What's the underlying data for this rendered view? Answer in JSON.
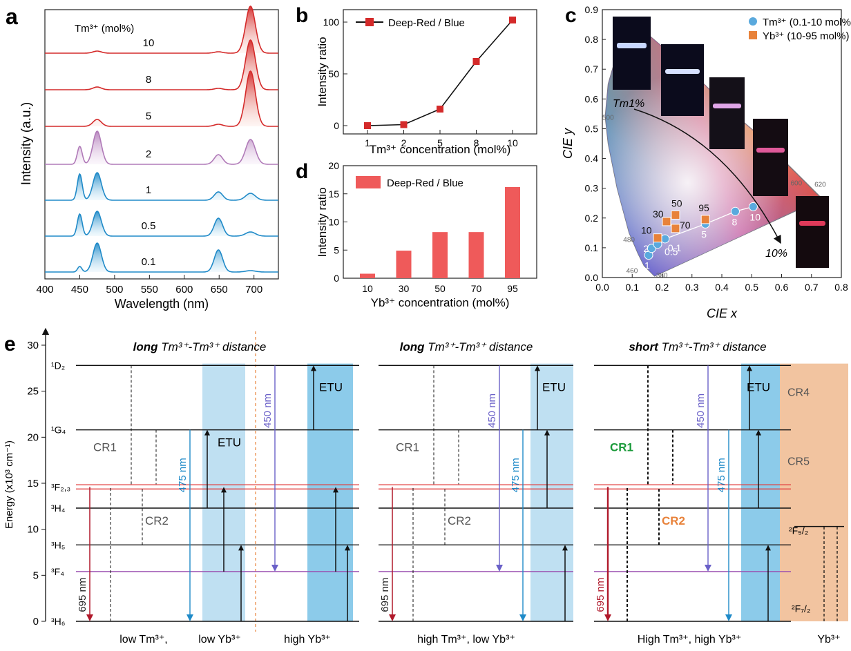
{
  "colors": {
    "red": "#d42a2a",
    "redFill": "#f2b3a8",
    "purple": "#b07ab8",
    "purpleFill": "#e4cfe8",
    "blue": "#1f8ac8",
    "blueFill": "#9fd3ee",
    "bar": "#ef5a5a",
    "marker": "#d42a2a",
    "cieTm": "#5aa9dd",
    "cieYb": "#e8823a",
    "lightBlue": "#bfe0f2",
    "midBlue": "#8ccbea",
    "peach": "#f2c4a0",
    "violet": "#9a4fb0",
    "deepRed": "#b0182a"
  },
  "panel_a": {
    "label": "a",
    "legend": "Tm³⁺ (mol%)",
    "ylabel": "Intensity (a.u.)",
    "xlabel": "Wavelength (nm)",
    "xticks": [
      "400",
      "450",
      "500",
      "550",
      "600",
      "650",
      "700"
    ],
    "traces": [
      {
        "name": "10",
        "style": "red",
        "baseline": 10
      },
      {
        "name": "8",
        "style": "red",
        "baseline": 8
      },
      {
        "name": "5",
        "style": "red",
        "baseline": 5
      },
      {
        "name": "2",
        "style": "purple",
        "baseline": 2
      },
      {
        "name": "1",
        "style": "blue",
        "baseline": 1
      },
      {
        "name": "0.5",
        "style": "blue",
        "baseline": 0.5
      },
      {
        "name": "0.1",
        "style": "blue",
        "baseline": 0.1
      }
    ]
  },
  "panel_e": {
    "label": "e",
    "ylabel": "Energy (x10³ cm⁻¹)",
    "yticks": [
      "0",
      "5",
      "10",
      "15",
      "20",
      "25",
      "30"
    ],
    "levels": [
      "¹D₂",
      "¹G₄",
      "³F₂,₃",
      "³H₄",
      "³H₅",
      "³F₄",
      "³H₆"
    ],
    "sections": [
      {
        "title_bold": "long",
        "title_rest": " Tm³⁺-Tm³⁺ distance",
        "sub1": "low Tm³⁺,",
        "sub2": "low Yb³⁺",
        "sub3": "high Yb³⁺"
      },
      {
        "title_bold": "long",
        "title_rest": " Tm³⁺-Tm³⁺ distance",
        "sub1": "high Tm³⁺, low Yb³⁺"
      },
      {
        "title_bold": "short",
        "title_rest": " Tm³⁺-Tm³⁺ distance",
        "sub1": "High Tm³⁺, high Yb³⁺",
        "sub2": "Yb³⁺"
      }
    ],
    "labels": {
      "cr1": "CR1",
      "cr2": "CR2",
      "cr4": "CR4",
      "cr5": "CR5",
      "etu": "ETU",
      "nm475": "475 nm",
      "nm450": "450 nm",
      "nm695": "695 nm",
      "yb_upper": "²F₅/₂",
      "yb_lower": "²F₇/₂"
    }
  },
  "chart_data": [
    {
      "type": "bar",
      "panel": "b",
      "style": "line-with-markers",
      "categories": [
        "1",
        "2",
        "5",
        "8",
        "10"
      ],
      "series": [
        {
          "name": "Deep-Red / Blue",
          "values": [
            0,
            1,
            16,
            62,
            102
          ]
        }
      ],
      "xlabel": "Tm³⁺ concentration (mol%)",
      "ylabel": "Intensity ratio",
      "ylim": [
        -8,
        112
      ],
      "yticks": [
        0,
        50,
        100
      ]
    },
    {
      "type": "bar",
      "panel": "d",
      "categories": [
        "10",
        "30",
        "50",
        "70",
        "95"
      ],
      "series": [
        {
          "name": "Deep-Red / Blue",
          "values": [
            0.8,
            4.9,
            8.2,
            8.2,
            16.2
          ]
        }
      ],
      "xlabel": "Yb³⁺ concentration (mol%)",
      "ylabel": "Intensity ratio",
      "ylim": [
        0,
        20
      ],
      "yticks": [
        0,
        5,
        10,
        15,
        20
      ]
    },
    {
      "type": "scatter",
      "panel": "c",
      "xlabel": "CIE x",
      "ylabel": "CIE y",
      "xlim": [
        0,
        0.8
      ],
      "ylim": [
        0,
        0.9
      ],
      "xticks": [
        "0.0",
        "0.1",
        "0.2",
        "0.3",
        "0.4",
        "0.5",
        "0.6",
        "0.7",
        "0.8"
      ],
      "yticks": [
        "0.0",
        "0.1",
        "0.2",
        "0.3",
        "0.4",
        "0.5",
        "0.6",
        "0.7",
        "0.8",
        "0.9"
      ],
      "series": [
        {
          "name": "Tm³⁺ (0.1-10 mol%)",
          "points": [
            {
              "label": "1",
              "x": 0.155,
              "y": 0.075
            },
            {
              "label": "2",
              "x": 0.165,
              "y": 0.098
            },
            {
              "label": "0.5",
              "x": 0.185,
              "y": 0.112
            },
            {
              "label": "0.1",
              "x": 0.21,
              "y": 0.13
            },
            {
              "label": "5",
              "x": 0.345,
              "y": 0.18
            },
            {
              "label": "8",
              "x": 0.445,
              "y": 0.222
            },
            {
              "label": "10",
              "x": 0.505,
              "y": 0.238
            }
          ]
        },
        {
          "name": "Yb³⁺ (10-95 mol%)",
          "points": [
            {
              "label": "10",
              "x": 0.185,
              "y": 0.133
            },
            {
              "label": "30",
              "x": 0.215,
              "y": 0.188
            },
            {
              "label": "50",
              "x": 0.245,
              "y": 0.21
            },
            {
              "label": "70",
              "x": 0.245,
              "y": 0.165
            },
            {
              "label": "95",
              "x": 0.345,
              "y": 0.195
            }
          ]
        }
      ],
      "annotations": [
        "Tm1%",
        "10%"
      ],
      "wavelength_marks": [
        "500",
        "600",
        "620",
        "480",
        "460",
        "380"
      ]
    }
  ]
}
